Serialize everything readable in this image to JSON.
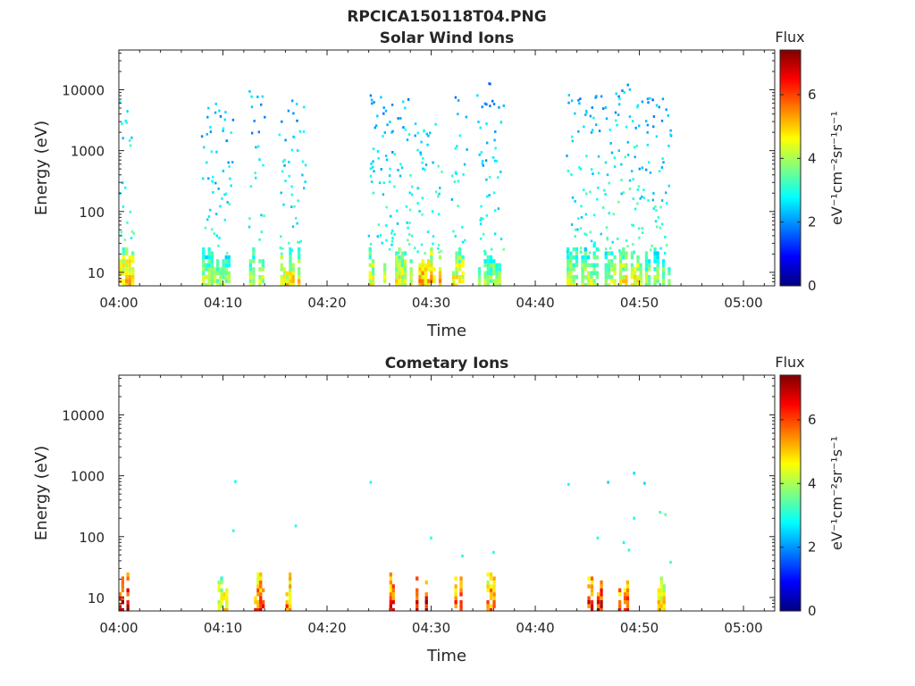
{
  "figure": {
    "title": "RPCICA150118T04.PNG"
  },
  "colors": {
    "jet": [
      "#00007f",
      "#0000ff",
      "#007fff",
      "#00ffff",
      "#7fff7f",
      "#ffff00",
      "#ff7f00",
      "#ff0000",
      "#7f0000"
    ],
    "axis": "#262626"
  },
  "chart_data": [
    {
      "type": "heatmap",
      "title": "Solar Wind Ions",
      "xlabel": "Time",
      "ylabel": "Energy (eV)",
      "xlim": [
        "04:00",
        "05:03"
      ],
      "ylim": [
        6,
        45000
      ],
      "y_scale": "log",
      "x_ticks": [
        "04:00",
        "04:10",
        "04:20",
        "04:30",
        "04:40",
        "04:50",
        "05:00"
      ],
      "y_ticks": [
        "10",
        "100",
        "1000",
        "10000"
      ],
      "colorbar": {
        "title": "Flux",
        "units": "eV⁻¹cm⁻²sr⁻¹s⁻¹",
        "range": [
          0,
          7.4
        ],
        "ticks": [
          "0",
          "2",
          "4",
          "6"
        ]
      },
      "bursts": [
        {
          "start": "04:00",
          "end": "04:01.5",
          "low_flux": 5.0,
          "high_flux": 3.0,
          "max_energy": 10500
        },
        {
          "start": "04:08",
          "end": "04:11",
          "low_flux": 4.0,
          "high_flux": 2.8,
          "max_energy": 6500
        },
        {
          "start": "04:12.5",
          "end": "04:14",
          "low_flux": 4.2,
          "high_flux": 2.8,
          "max_energy": 9500
        },
        {
          "start": "04:15.5",
          "end": "04:18",
          "low_flux": 4.8,
          "high_flux": 2.8,
          "max_energy": 7500
        },
        {
          "start": "04:24",
          "end": "04:28.5",
          "low_flux": 4.6,
          "high_flux": 2.8,
          "max_energy": 9500
        },
        {
          "start": "04:28.5",
          "end": "04:31",
          "low_flux": 5.2,
          "high_flux": 3.0,
          "max_energy": 3500
        },
        {
          "start": "04:32",
          "end": "04:33.5",
          "low_flux": 4.8,
          "high_flux": 2.8,
          "max_energy": 9500
        },
        {
          "start": "04:34.5",
          "end": "04:37",
          "low_flux": 4.0,
          "high_flux": 2.8,
          "max_energy": 13500
        },
        {
          "start": "04:43",
          "end": "04:47.5",
          "low_flux": 4.2,
          "high_flux": 2.8,
          "max_energy": 9000
        },
        {
          "start": "04:47.5",
          "end": "04:50",
          "low_flux": 4.6,
          "high_flux": 3.0,
          "max_energy": 12000
        },
        {
          "start": "04:50",
          "end": "04:53",
          "low_flux": 4.0,
          "high_flux": 2.8,
          "max_energy": 10000
        }
      ]
    },
    {
      "type": "heatmap",
      "title": "Cometary Ions",
      "xlabel": "Time",
      "ylabel": "Energy (eV)",
      "xlim": [
        "04:00",
        "05:03"
      ],
      "ylim": [
        6,
        45000
      ],
      "y_scale": "log",
      "x_ticks": [
        "04:00",
        "04:10",
        "04:20",
        "04:30",
        "04:40",
        "04:50",
        "05:00"
      ],
      "y_ticks": [
        "10",
        "100",
        "1000",
        "10000"
      ],
      "colorbar": {
        "title": "Flux",
        "units": "eV⁻¹cm⁻²sr⁻¹s⁻¹",
        "range": [
          0,
          7.4
        ],
        "ticks": [
          "0",
          "2",
          "4",
          "6"
        ]
      },
      "bursts": [
        {
          "start": "04:00",
          "end": "04:01",
          "low_flux": 6.8,
          "high_flux": 4.0,
          "max_energy": 28
        },
        {
          "start": "04:09.5",
          "end": "04:10.5",
          "low_flux": 4.8,
          "high_flux": 3.0,
          "max_energy": 18
        },
        {
          "start": "04:13",
          "end": "04:14",
          "low_flux": 6.0,
          "high_flux": 3.5,
          "max_energy": 22
        },
        {
          "start": "04:16",
          "end": "04:17.5",
          "low_flux": 5.6,
          "high_flux": 3.5,
          "max_energy": 28
        },
        {
          "start": "04:26",
          "end": "04:27",
          "low_flux": 6.2,
          "high_flux": 3.5,
          "max_energy": 24
        },
        {
          "start": "04:28.5",
          "end": "04:30",
          "low_flux": 6.8,
          "high_flux": 4.0,
          "max_energy": 26
        },
        {
          "start": "04:32",
          "end": "04:33",
          "low_flux": 6.2,
          "high_flux": 3.5,
          "max_energy": 24
        },
        {
          "start": "04:35",
          "end": "04:36.5",
          "low_flux": 5.8,
          "high_flux": 3.5,
          "max_energy": 24
        },
        {
          "start": "04:45",
          "end": "04:46.5",
          "low_flux": 6.4,
          "high_flux": 3.5,
          "max_energy": 26
        },
        {
          "start": "04:48",
          "end": "04:49",
          "low_flux": 6.0,
          "high_flux": 3.5,
          "max_energy": 22
        },
        {
          "start": "04:51.5",
          "end": "04:52.5",
          "low_flux": 5.0,
          "high_flux": 3.2,
          "max_energy": 22
        }
      ],
      "sparse_points": [
        {
          "t": "04:11.2",
          "energy": 800,
          "flux": 2.8
        },
        {
          "t": "04:11",
          "energy": 125,
          "flux": 3.0
        },
        {
          "t": "04:17",
          "energy": 150,
          "flux": 3.0
        },
        {
          "t": "04:24.2",
          "energy": 780,
          "flux": 2.8
        },
        {
          "t": "04:43.2",
          "energy": 720,
          "flux": 2.8
        },
        {
          "t": "04:47",
          "energy": 780,
          "flux": 2.5
        },
        {
          "t": "04:49.5",
          "energy": 1100,
          "flux": 2.5
        },
        {
          "t": "04:50.5",
          "energy": 750,
          "flux": 2.5
        },
        {
          "t": "04:52",
          "energy": 250,
          "flux": 3.2
        },
        {
          "t": "04:52.5",
          "energy": 230,
          "flux": 3.5
        },
        {
          "t": "04:49.5",
          "energy": 200,
          "flux": 2.8
        },
        {
          "t": "04:48.5",
          "energy": 80,
          "flux": 2.8
        },
        {
          "t": "04:46",
          "energy": 95,
          "flux": 3.0
        },
        {
          "t": "04:30",
          "energy": 95,
          "flux": 3.0
        },
        {
          "t": "04:33",
          "energy": 48,
          "flux": 3.0
        },
        {
          "t": "04:36",
          "energy": 55,
          "flux": 3.0
        },
        {
          "t": "04:49",
          "energy": 60,
          "flux": 3.0
        },
        {
          "t": "04:53",
          "energy": 38,
          "flux": 3.2
        }
      ]
    }
  ]
}
